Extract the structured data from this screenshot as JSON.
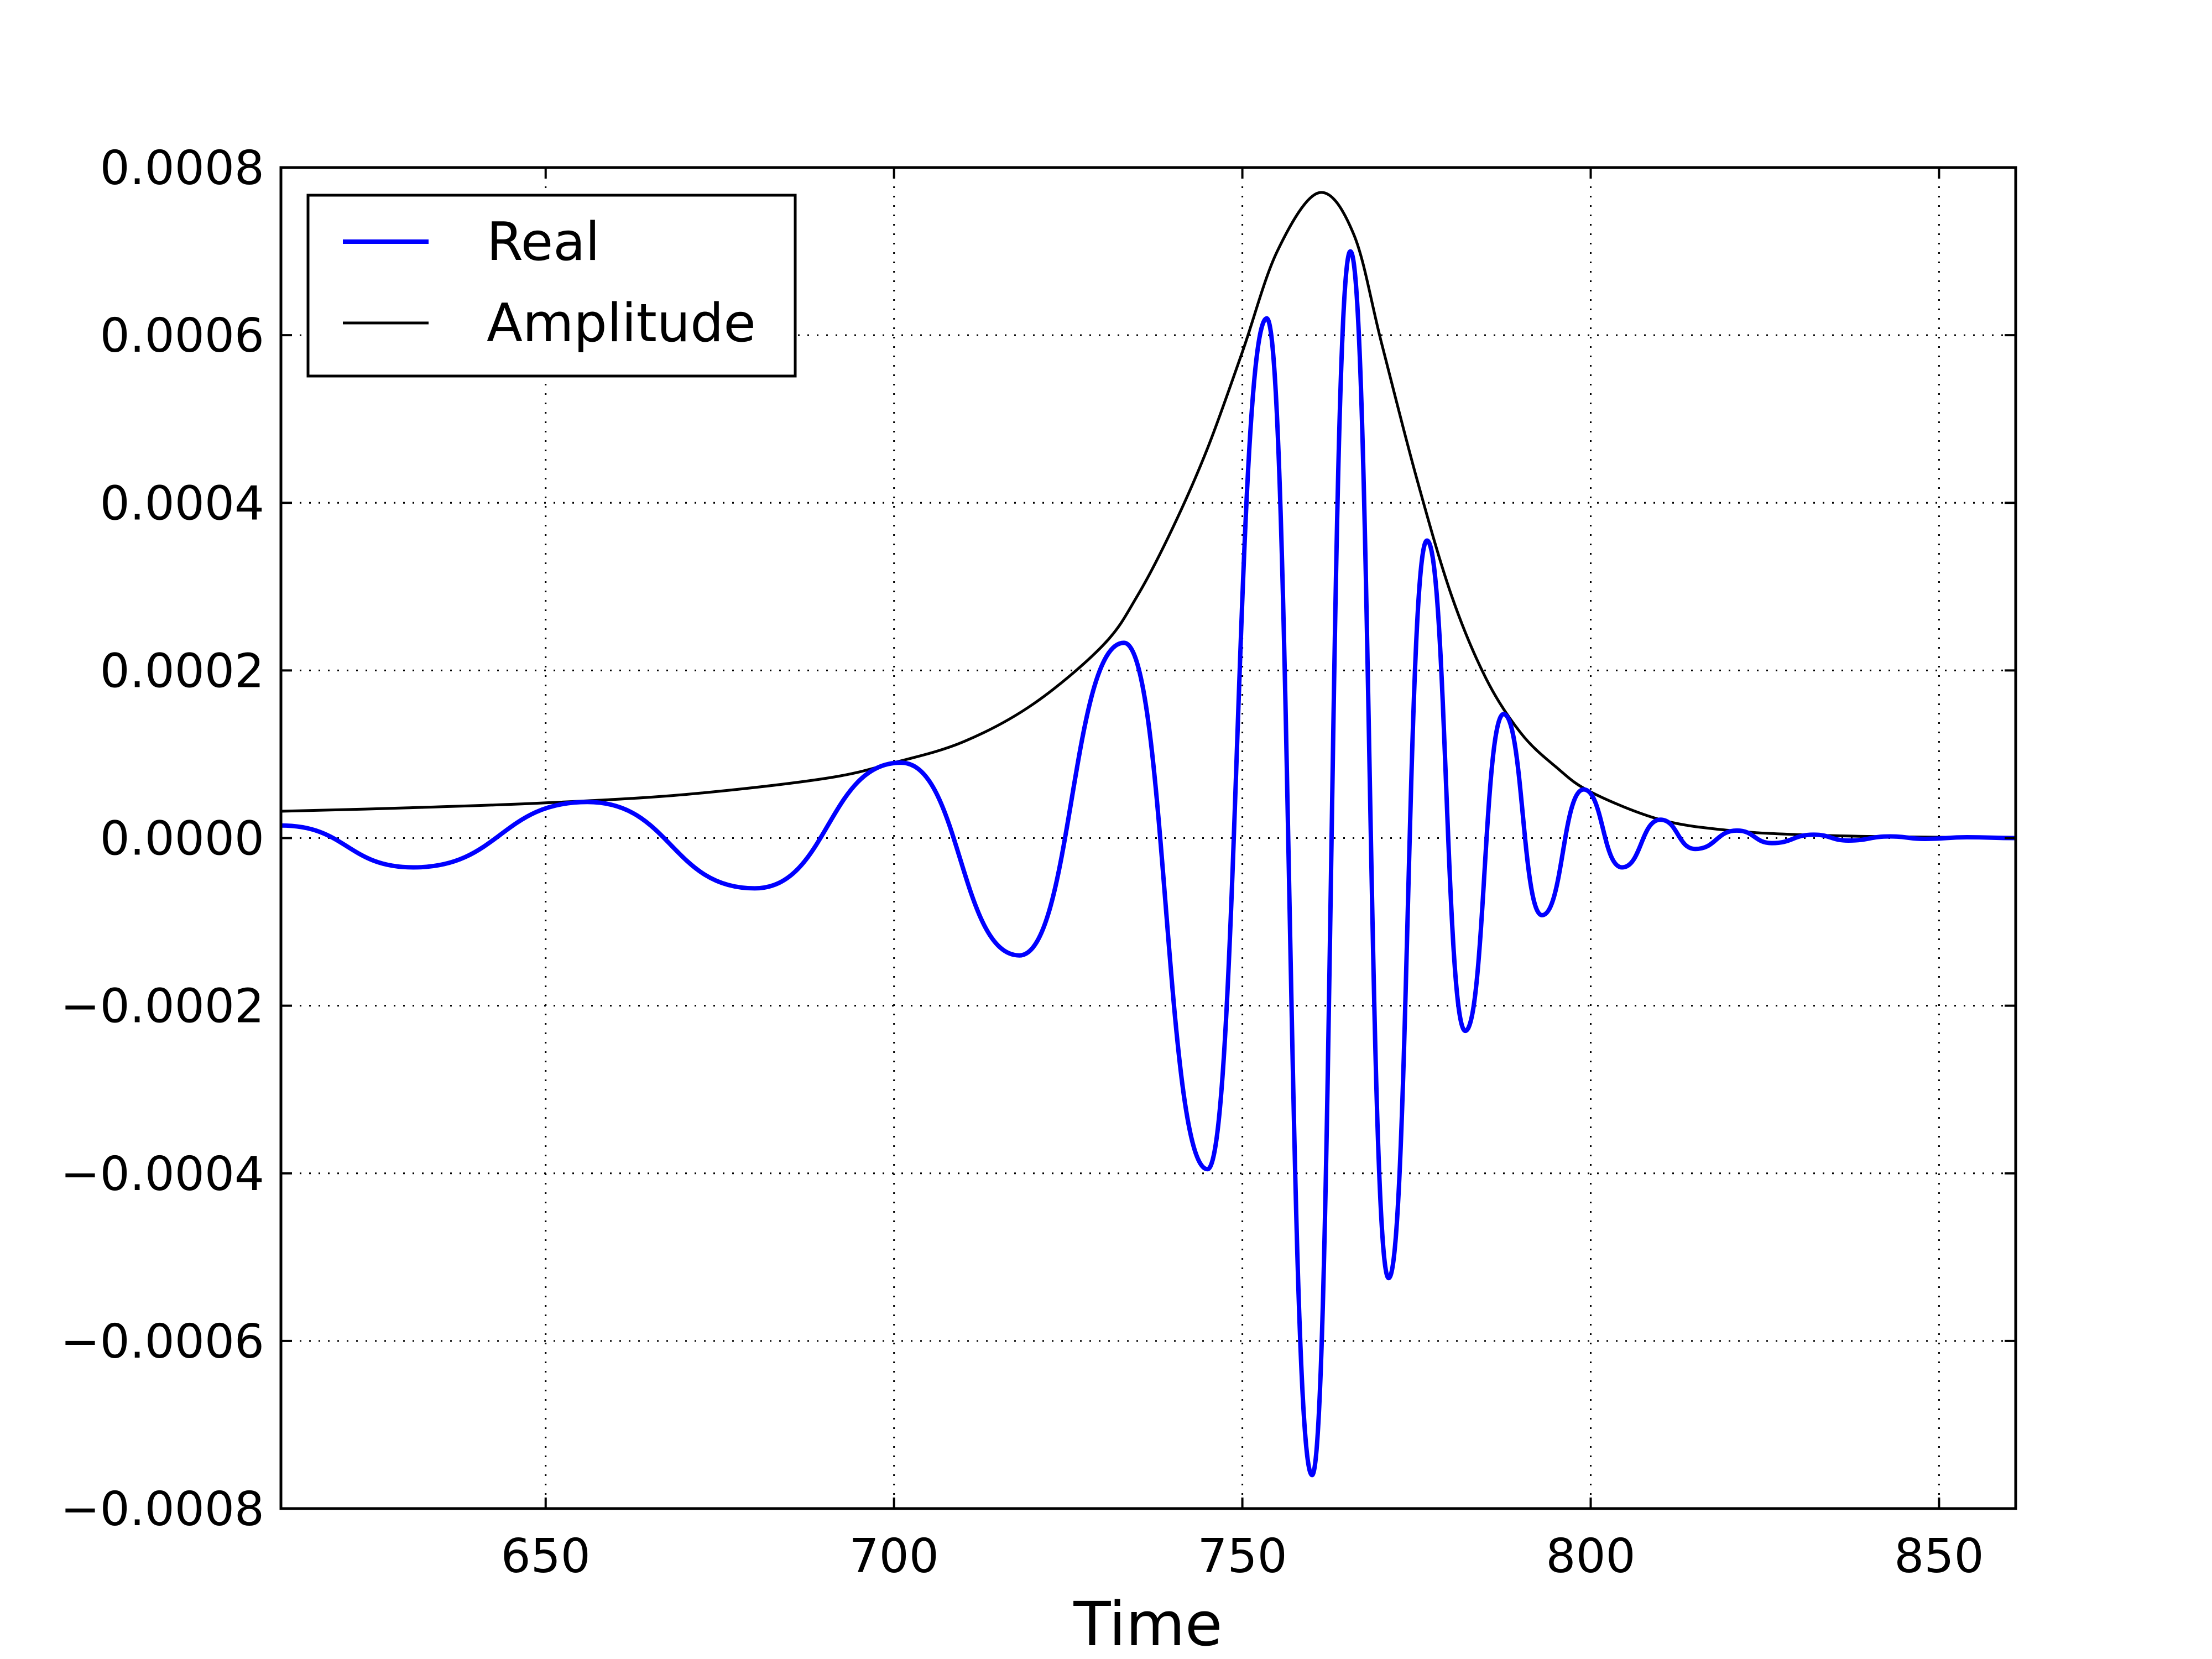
{
  "chart_data": {
    "type": "line",
    "title": "",
    "xlabel": "Time",
    "ylabel": "",
    "xlim": [
      612,
      861
    ],
    "ylim": [
      -0.0008,
      0.0008
    ],
    "x_ticks": [
      650,
      700,
      750,
      800,
      850
    ],
    "x_tick_labels": [
      "650",
      "700",
      "750",
      "800",
      "850"
    ],
    "y_ticks": [
      -0.0008,
      -0.0006,
      -0.0004,
      -0.0002,
      0.0,
      0.0002,
      0.0004,
      0.0006,
      0.0008
    ],
    "y_tick_labels": [
      "−0.0008",
      "−0.0006",
      "−0.0004",
      "−0.0002",
      "0.0000",
      "0.0002",
      "0.0004",
      "0.0006",
      "0.0008"
    ],
    "grid": true,
    "legend": {
      "placement": "upper-left"
    },
    "series": [
      {
        "name": "Real",
        "color": "#0000ff",
        "x": [
          612,
          631,
          656,
          680,
          701,
          718,
          733,
          745,
          753.5,
          760,
          765.5,
          771,
          776.5,
          782,
          787.5,
          793,
          799,
          804.5,
          810,
          815,
          821,
          826,
          832,
          837,
          843,
          848,
          854,
          861
        ],
        "y": [
          1.5e-05,
          -3.5e-05,
          4.3e-05,
          -6e-05,
          9e-05,
          -0.00014,
          0.000233,
          -0.000395,
          0.00062,
          -0.00076,
          0.0007,
          -0.000525,
          0.000355,
          -0.00023,
          0.000148,
          -9.2e-05,
          5.8e-05,
          -3.5e-05,
          2.2e-05,
          -1.3e-05,
          9e-06,
          -6e-06,
          4e-06,
          -3e-06,
          2e-06,
          -1e-06,
          1e-06,
          0.0
        ]
      },
      {
        "name": "Amplitude",
        "color": "#000000",
        "x": [
          612,
          630,
          650,
          670,
          690,
          700,
          710,
          720,
          730,
          735,
          740,
          745,
          750,
          755,
          761,
          766,
          770,
          775,
          780,
          785,
          790,
          795,
          800,
          810,
          820,
          830,
          840,
          850,
          861
        ],
        "y": [
          3.2e-05,
          3.6e-05,
          4.2e-05,
          5.2e-05,
          7.1e-05,
          9e-05,
          0.000115,
          0.00016,
          0.00023,
          0.00029,
          0.00037,
          0.000465,
          0.00058,
          0.0007,
          0.00077,
          0.00072,
          0.00059,
          0.00043,
          0.00029,
          0.00019,
          0.000125,
          8.5e-05,
          5.5e-05,
          2.2e-05,
          9e-06,
          4e-06,
          2e-06,
          1e-06,
          5e-07
        ]
      }
    ]
  }
}
